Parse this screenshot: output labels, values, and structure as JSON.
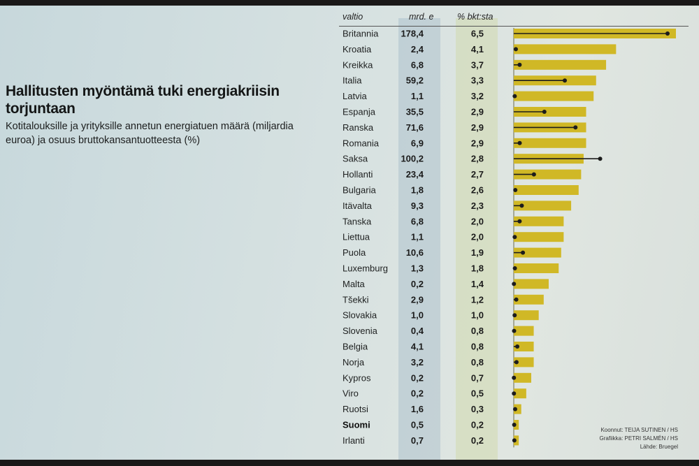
{
  "title": "Hallitusten myöntämä tuki energiakriisin torjuntaan",
  "subtitle": "Kotitalouksille ja yrityksille annetun energiatuen määrä (miljardia euroa) ja osuus bruttokansantuotteesta (%)",
  "headers": {
    "country": "valtio",
    "amount": "mrd. e",
    "pct": "% bkt:sta"
  },
  "credits": {
    "line1": "Koonnut: TEIJA SUTINEN / HS",
    "line2": "Grafiikka: PETRI SALMÉN / HS",
    "line3": "Lähde: Bruegel"
  },
  "chart_data": {
    "type": "table",
    "columns": [
      "valtio",
      "mrd. e",
      "% bkt:sta"
    ],
    "bold_country": "Suomi",
    "bar_color": "#d0b826",
    "dot_line_color": "#1c1c1c",
    "rows": [
      {
        "country": "Britannia",
        "amount": 178.4,
        "pct": 6.5,
        "amount_label": "178,4",
        "pct_label": "6,5"
      },
      {
        "country": "Kroatia",
        "amount": 2.4,
        "pct": 4.1,
        "amount_label": "2,4",
        "pct_label": "4,1"
      },
      {
        "country": "Kreikka",
        "amount": 6.8,
        "pct": 3.7,
        "amount_label": "6,8",
        "pct_label": "3,7"
      },
      {
        "country": "Italia",
        "amount": 59.2,
        "pct": 3.3,
        "amount_label": "59,2",
        "pct_label": "3,3"
      },
      {
        "country": "Latvia",
        "amount": 1.1,
        "pct": 3.2,
        "amount_label": "1,1",
        "pct_label": "3,2"
      },
      {
        "country": "Espanja",
        "amount": 35.5,
        "pct": 2.9,
        "amount_label": "35,5",
        "pct_label": "2,9"
      },
      {
        "country": "Ranska",
        "amount": 71.6,
        "pct": 2.9,
        "amount_label": "71,6",
        "pct_label": "2,9"
      },
      {
        "country": "Romania",
        "amount": 6.9,
        "pct": 2.9,
        "amount_label": "6,9",
        "pct_label": "2,9"
      },
      {
        "country": "Saksa",
        "amount": 100.2,
        "pct": 2.8,
        "amount_label": "100,2",
        "pct_label": "2,8"
      },
      {
        "country": "Hollanti",
        "amount": 23.4,
        "pct": 2.7,
        "amount_label": "23,4",
        "pct_label": "2,7"
      },
      {
        "country": "Bulgaria",
        "amount": 1.8,
        "pct": 2.6,
        "amount_label": "1,8",
        "pct_label": "2,6"
      },
      {
        "country": "Itävalta",
        "amount": 9.3,
        "pct": 2.3,
        "amount_label": "9,3",
        "pct_label": "2,3"
      },
      {
        "country": "Tanska",
        "amount": 6.8,
        "pct": 2.0,
        "amount_label": "6,8",
        "pct_label": "2,0"
      },
      {
        "country": "Liettua",
        "amount": 1.1,
        "pct": 2.0,
        "amount_label": "1,1",
        "pct_label": "2,0"
      },
      {
        "country": "Puola",
        "amount": 10.6,
        "pct": 1.9,
        "amount_label": "10,6",
        "pct_label": "1,9"
      },
      {
        "country": "Luxemburg",
        "amount": 1.3,
        "pct": 1.8,
        "amount_label": "1,3",
        "pct_label": "1,8"
      },
      {
        "country": "Malta",
        "amount": 0.2,
        "pct": 1.4,
        "amount_label": "0,2",
        "pct_label": "1,4"
      },
      {
        "country": "Tšekki",
        "amount": 2.9,
        "pct": 1.2,
        "amount_label": "2,9",
        "pct_label": "1,2"
      },
      {
        "country": "Slovakia",
        "amount": 1.0,
        "pct": 1.0,
        "amount_label": "1,0",
        "pct_label": "1,0"
      },
      {
        "country": "Slovenia",
        "amount": 0.4,
        "pct": 0.8,
        "amount_label": "0,4",
        "pct_label": "0,8"
      },
      {
        "country": "Belgia",
        "amount": 4.1,
        "pct": 0.8,
        "amount_label": "4,1",
        "pct_label": "0,8"
      },
      {
        "country": "Norja",
        "amount": 3.2,
        "pct": 0.8,
        "amount_label": "3,2",
        "pct_label": "0,8"
      },
      {
        "country": "Kypros",
        "amount": 0.2,
        "pct": 0.7,
        "amount_label": "0,2",
        "pct_label": "0,7"
      },
      {
        "country": "Viro",
        "amount": 0.2,
        "pct": 0.5,
        "amount_label": "0,2",
        "pct_label": "0,5"
      },
      {
        "country": "Ruotsi",
        "amount": 1.6,
        "pct": 0.3,
        "amount_label": "1,6",
        "pct_label": "0,3"
      },
      {
        "country": "Suomi",
        "amount": 0.5,
        "pct": 0.2,
        "amount_label": "0,5",
        "pct_label": "0,2"
      },
      {
        "country": "Irlanti",
        "amount": 0.7,
        "pct": 0.2,
        "amount_label": "0,7",
        "pct_label": "0,2"
      }
    ]
  }
}
